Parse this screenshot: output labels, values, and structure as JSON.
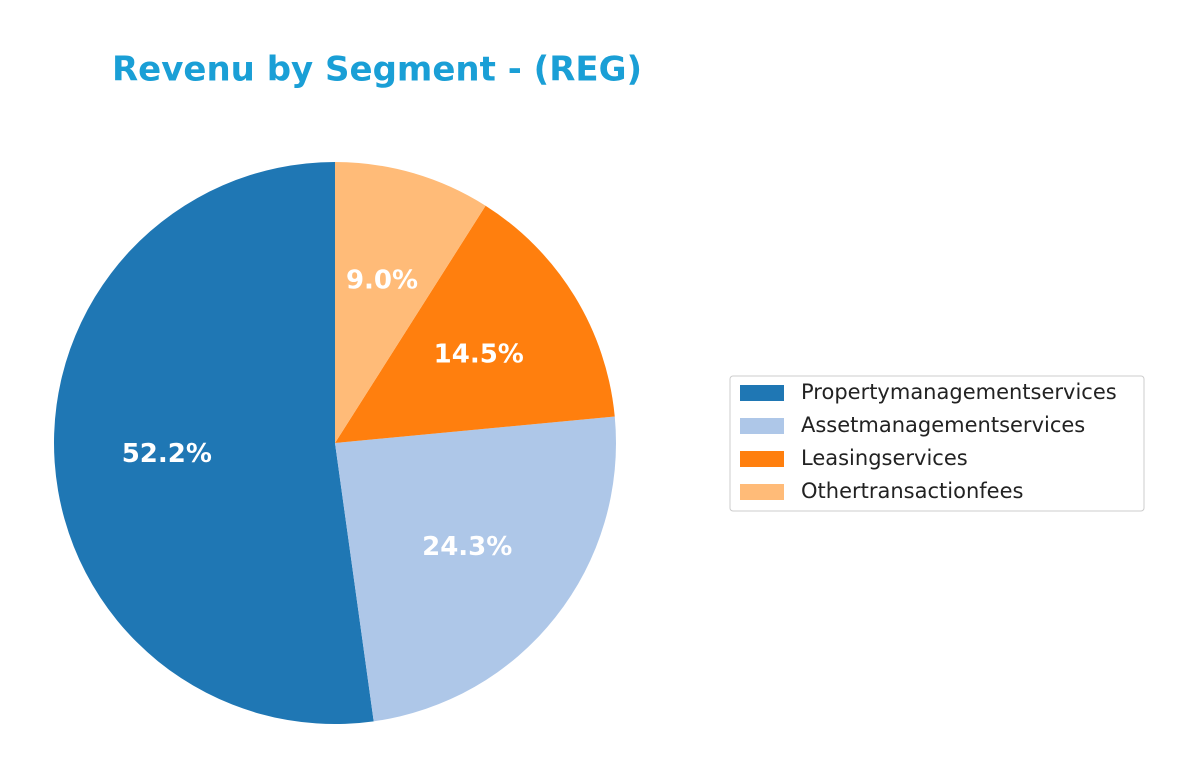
{
  "chart_data": {
    "type": "pie",
    "title": "Revenu by Segment - (REG)",
    "categories": [
      "Propertymanagementservices",
      "Assetmanagementservices",
      "Leasingservices",
      "Othertransactionfees"
    ],
    "values": [
      52.2,
      24.3,
      14.5,
      9.0
    ],
    "value_labels": [
      "52.2%",
      "24.3%",
      "14.5%",
      "9.0%"
    ],
    "colors": [
      "#1f77b4",
      "#aec7e8",
      "#ff7f0e",
      "#ffbb78"
    ],
    "legend": "right"
  }
}
